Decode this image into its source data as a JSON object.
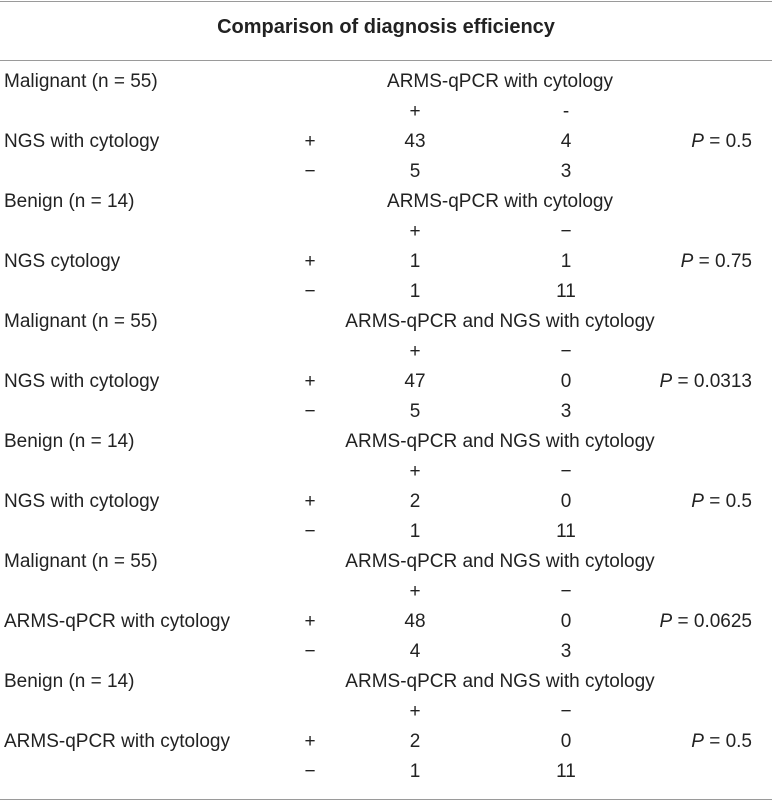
{
  "table": {
    "title": "Comparison of diagnosis efficiency",
    "blocks": [
      {
        "group": "Malignant (n = 55)",
        "comparator": "ARMS-qPCR with cytology",
        "col_plus": "+",
        "col_minus": "-",
        "row_label": "NGS with cytology",
        "sign_plus": "+",
        "sign_minus": "−",
        "pp": "43",
        "pm": "4",
        "mp": "5",
        "mm": "3",
        "p_label": "P",
        "p_value": " = 0.5"
      },
      {
        "group": "Benign (n = 14)",
        "comparator": "ARMS-qPCR with cytology",
        "col_plus": "+",
        "col_minus": "−",
        "row_label": "NGS cytology",
        "sign_plus": "+",
        "sign_minus": "−",
        "pp": "1",
        "pm": "1",
        "mp": "1",
        "mm": "11",
        "p_label": "P",
        "p_value": " = 0.75"
      },
      {
        "group": "Malignant (n = 55)",
        "comparator": "ARMS-qPCR and NGS with cytology",
        "col_plus": "+",
        "col_minus": "−",
        "row_label": "NGS with cytology",
        "sign_plus": "+",
        "sign_minus": "−",
        "pp": "47",
        "pm": "0",
        "mp": "5",
        "mm": "3",
        "p_label": "P",
        "p_value": " = 0.0313"
      },
      {
        "group": "Benign (n = 14)",
        "comparator": "ARMS-qPCR and NGS with cytology",
        "col_plus": "+",
        "col_minus": "−",
        "row_label": "NGS with cytology",
        "sign_plus": "+",
        "sign_minus": "−",
        "pp": "2",
        "pm": "0",
        "mp": "1",
        "mm": "11",
        "p_label": "P",
        "p_value": " = 0.5"
      },
      {
        "group": "Malignant (n = 55)",
        "comparator": "ARMS-qPCR and NGS with cytology",
        "col_plus": "+",
        "col_minus": "−",
        "row_label": "ARMS-qPCR with cytology",
        "sign_plus": "+",
        "sign_minus": "−",
        "pp": "48",
        "pm": "0",
        "mp": "4",
        "mm": "3",
        "p_label": "P",
        "p_value": " = 0.0625"
      },
      {
        "group": "Benign (n = 14)",
        "comparator": "ARMS-qPCR and NGS with cytology",
        "col_plus": "+",
        "col_minus": "−",
        "row_label": "ARMS-qPCR with cytology",
        "sign_plus": "+",
        "sign_minus": "−",
        "pp": "2",
        "pm": "0",
        "mp": "1",
        "mm": "11",
        "p_label": "P",
        "p_value": " = 0.5"
      }
    ]
  }
}
